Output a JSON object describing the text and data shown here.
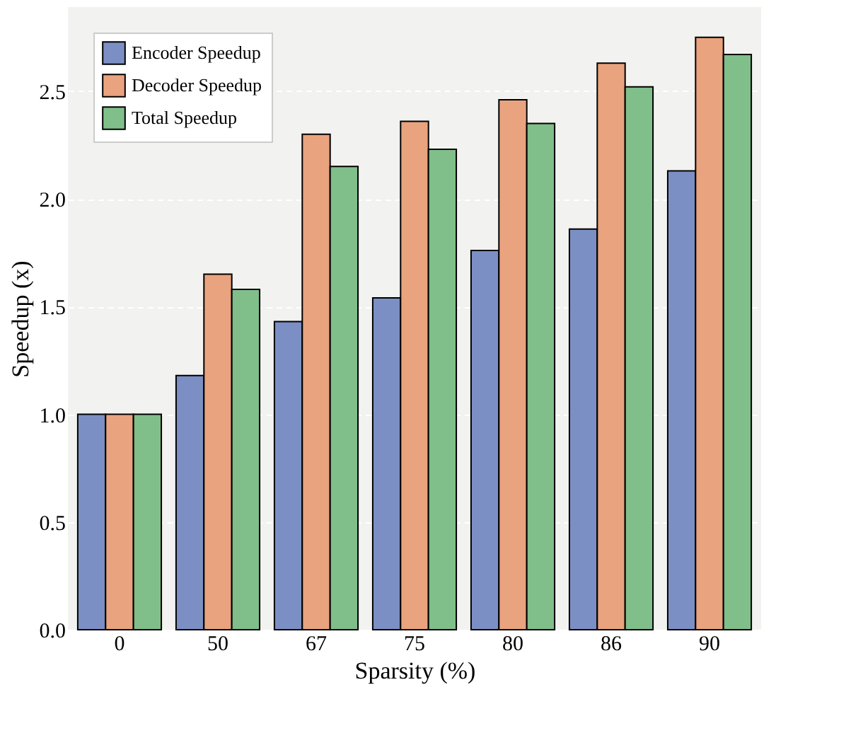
{
  "chart_data": {
    "type": "bar",
    "xlabel": "Sparsity (%)",
    "ylabel": "Speedup (x)",
    "categories": [
      "0",
      "50",
      "67",
      "75",
      "80",
      "86",
      "90"
    ],
    "series": [
      {
        "name": "Encoder Speedup",
        "color": "#7b8fc4",
        "values": [
          1.0,
          1.18,
          1.43,
          1.54,
          1.76,
          1.86,
          2.13
        ]
      },
      {
        "name": "Decoder Speedup",
        "color": "#e9a37e",
        "values": [
          1.0,
          1.65,
          2.3,
          2.36,
          2.46,
          2.63,
          2.75
        ]
      },
      {
        "name": "Total Speedup",
        "color": "#80bf8a",
        "values": [
          1.0,
          1.58,
          2.15,
          2.23,
          2.35,
          2.52,
          2.67
        ]
      }
    ],
    "ylim": [
      0,
      2.89
    ],
    "yticks": [
      {
        "value": 0,
        "label": "0.0"
      },
      {
        "value": 0.5,
        "label": "0.5"
      },
      {
        "value": 1,
        "label": "1.0"
      },
      {
        "value": 1.5,
        "label": "1.5"
      },
      {
        "value": 2,
        "label": "2.0"
      },
      {
        "value": 2.5,
        "label": "2.5"
      }
    ],
    "grid": "y",
    "legend": "top left"
  }
}
